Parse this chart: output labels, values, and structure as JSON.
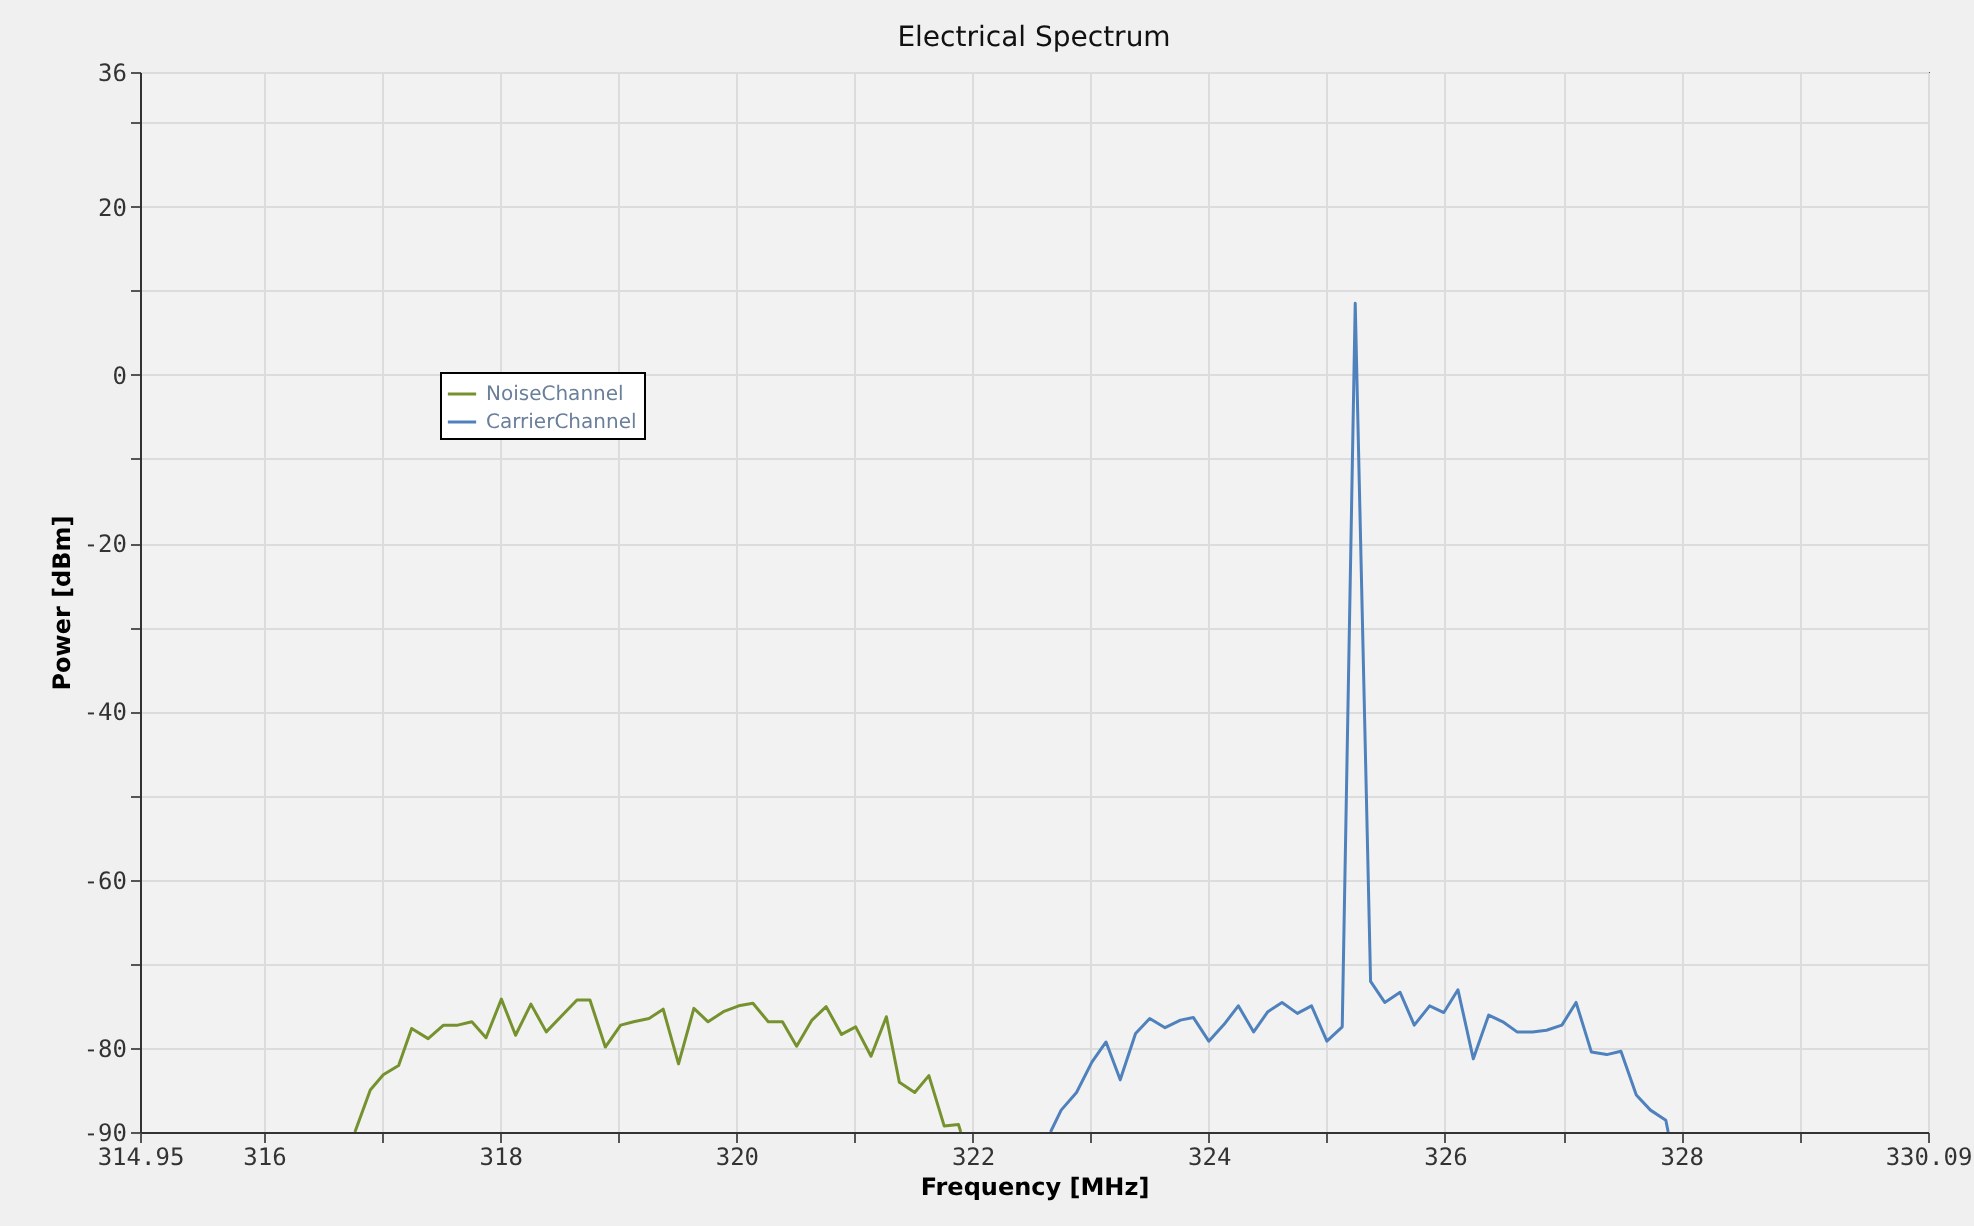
{
  "chart_data": {
    "type": "line",
    "title": "Electrical Spectrum",
    "xlabel": "Frequency [MHz]",
    "ylabel": "Power [dBm]",
    "xlim": [
      314.95,
      330.09
    ],
    "xticks": [
      314.95,
      316,
      {
        "value": 317,
        "label": null
      },
      318,
      {
        "value": 319,
        "label": null
      },
      320,
      {
        "value": 321,
        "label": null
      },
      322,
      {
        "value": 323,
        "label": null
      },
      324,
      {
        "value": 325,
        "label": null
      },
      326,
      {
        "value": 327,
        "label": null
      },
      328,
      {
        "value": 329,
        "label": null
      },
      330.09
    ],
    "ylim": [
      -90,
      36
    ],
    "yticks": [
      -90,
      -80,
      {
        "value": -70,
        "label": null
      },
      -60,
      {
        "value": -50,
        "label": null
      },
      -40,
      {
        "value": -30,
        "label": null
      },
      -20,
      {
        "value": -10,
        "label": null
      },
      0,
      {
        "value": 10,
        "label": null
      },
      20,
      {
        "value": 30,
        "label": null
      },
      36
    ],
    "grid": true,
    "legend": "top left",
    "marker": "none",
    "line_style": "solid",
    "series": [
      {
        "name": "NoiseChannel",
        "color": "#76922e",
        "x": [
          316.77,
          316.9,
          317.01,
          317.14,
          317.25,
          317.39,
          317.52,
          317.64,
          317.76,
          317.88,
          318.01,
          318.13,
          318.26,
          318.39,
          318.65,
          318.76,
          318.89,
          319.02,
          319.13,
          319.26,
          319.38,
          319.51,
          319.64,
          319.76,
          319.89,
          320.02,
          320.14,
          320.27,
          320.39,
          320.51,
          320.64,
          320.76,
          320.89,
          321.01,
          321.14,
          321.27,
          321.38,
          321.51,
          321.63,
          321.76,
          321.88,
          321.9
        ],
        "values": [
          -90,
          -85.0,
          -83.2,
          -82.1,
          -77.7,
          -78.9,
          -77.3,
          -77.3,
          -76.9,
          -78.8,
          -74.2,
          -78.5,
          -74.8,
          -78.1,
          -74.3,
          -74.3,
          -79.9,
          -77.3,
          -76.9,
          -76.5,
          -75.4,
          -81.9,
          -75.3,
          -76.9,
          -75.7,
          -75.0,
          -74.7,
          -76.9,
          -76.9,
          -79.8,
          -76.7,
          -75.1,
          -78.4,
          -77.5,
          -81.0,
          -76.3,
          -84.1,
          -85.3,
          -83.3,
          -89.3,
          -89.1,
          -90
        ]
      },
      {
        "name": "CarrierChannel",
        "color": "#4f81bd",
        "x": [
          322.66,
          322.75,
          322.88,
          323.01,
          323.13,
          323.25,
          323.38,
          323.5,
          323.63,
          323.76,
          323.87,
          324.0,
          324.13,
          324.25,
          324.38,
          324.5,
          324.62,
          324.75,
          324.87,
          325.0,
          325.13,
          325.24,
          325.37,
          325.49,
          325.62,
          325.74,
          325.87,
          325.99,
          326.11,
          326.24,
          326.37,
          326.49,
          326.61,
          326.74,
          326.86,
          326.99,
          327.11,
          327.24,
          327.37,
          327.49,
          327.62,
          327.74,
          327.87,
          327.89
        ],
        "values": [
          -90,
          -87.4,
          -85.3,
          -81.7,
          -79.3,
          -83.8,
          -78.3,
          -76.5,
          -77.6,
          -76.7,
          -76.4,
          -79.2,
          -77.2,
          -75.0,
          -78.1,
          -75.7,
          -74.6,
          -75.9,
          -75.0,
          -79.2,
          -77.5,
          8.5,
          -72.1,
          -74.6,
          -73.4,
          -77.3,
          -75.0,
          -75.8,
          -73.1,
          -81.3,
          -76.1,
          -76.9,
          -78.1,
          -78.1,
          -77.9,
          -77.3,
          -74.6,
          -80.5,
          -80.8,
          -80.4,
          -85.6,
          -87.4,
          -88.6,
          -90
        ]
      }
    ]
  }
}
